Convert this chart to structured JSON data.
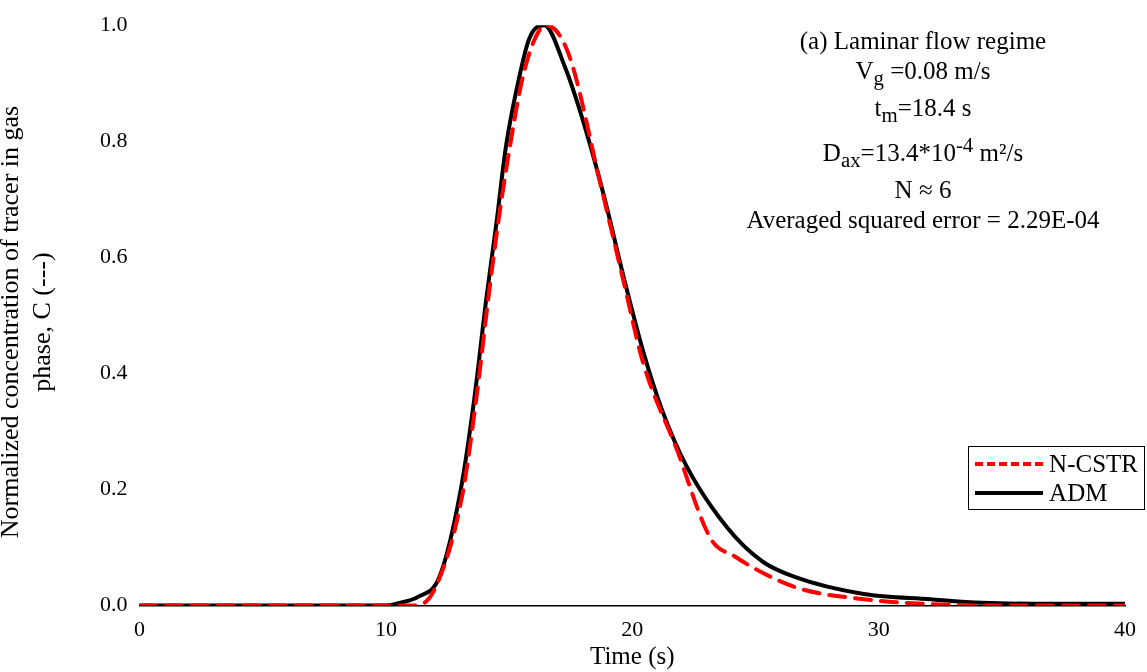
{
  "chart_data": {
    "type": "line",
    "xlabel": "Time (s)",
    "ylabel": "Normalized concentration of tracer in gas phase, C (---)",
    "xlim": [
      0,
      40
    ],
    "xticks": [
      0,
      10,
      20,
      30,
      40
    ],
    "ylim": [
      0,
      1
    ],
    "yticks": [
      {
        "value": 0,
        "label": "0.0"
      },
      {
        "value": 0.2,
        "label": "0.2"
      },
      {
        "value": 0.4,
        "label": "0.4"
      },
      {
        "value": 0.6,
        "label": "0.6"
      },
      {
        "value": 0.8,
        "label": "0.8"
      },
      {
        "value": 1,
        "label": "1.0"
      }
    ],
    "grid": false,
    "legend": "bottom right",
    "marker": "none",
    "annotations": [
      "(a) Laminar flow regime",
      "V$_{g}$ =0.08 m/s",
      "t$_{m}$=18.4 s",
      "D$_{ax}$=13.4*10$^{-4}$ m²/s",
      "N ≈ 6",
      "Averaged squared error = 2.29E-04"
    ],
    "series": [
      {
        "name": "N-CSTR",
        "color": "#ff0000",
        "line_style": "dashed",
        "x": [
          0,
          5,
          10,
          11.2,
          12.0,
          13.1,
          13.68,
          14.16,
          14.56,
          15.03,
          15.5,
          15.98,
          16.5,
          17.42,
          18.69,
          19.64,
          20.43,
          21.8,
          23.19,
          24.15,
          25.5,
          26.9,
          29.4,
          31.4,
          35,
          40
        ],
        "values": [
          0,
          0,
          0,
          0,
          0.03,
          0.19,
          0.36,
          0.53,
          0.66,
          0.79,
          0.9,
          0.97,
          1.0,
          0.95,
          0.73,
          0.56,
          0.42,
          0.27,
          0.115,
          0.085,
          0.052,
          0.028,
          0.011,
          0.004,
          0,
          0
        ]
      },
      {
        "name": "ADM",
        "color": "#000000",
        "line_style": "solid",
        "x": [
          0,
          5,
          10,
          10.6,
          11.3,
          12.18,
          13.04,
          13.6,
          14.08,
          14.49,
          14.87,
          15.36,
          15.83,
          16.43,
          17.25,
          18.04,
          18.85,
          19.64,
          20.43,
          21.22,
          22.17,
          23.86,
          25.25,
          26.62,
          29.4,
          32.1,
          34.2,
          37,
          40
        ],
        "values": [
          0,
          0,
          0,
          0.005,
          0.015,
          0.05,
          0.2,
          0.36,
          0.53,
          0.66,
          0.79,
          0.9,
          0.978,
          1.0,
          0.93,
          0.83,
          0.706,
          0.568,
          0.44,
          0.336,
          0.243,
          0.134,
          0.077,
          0.049,
          0.02,
          0.011,
          0.005,
          0.003,
          0.003
        ]
      }
    ]
  }
}
